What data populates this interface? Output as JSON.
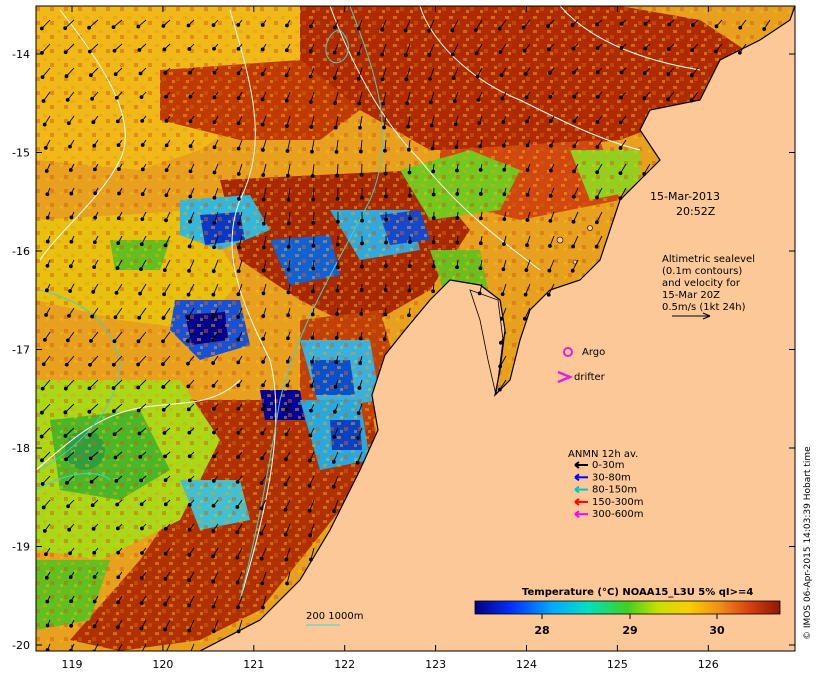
{
  "map": {
    "date_line1": "15-Mar-2013",
    "date_line2": "20:52Z",
    "altimetry_lines": [
      "Altimetric sealevel",
      "(0.1m contours)",
      "and velocity for",
      "15-Mar 20Z",
      "0.5m/s (1kt 24h)"
    ],
    "argo_label": "Argo",
    "drifter_label": "drifter",
    "anmn_title": "ANMN 12h av.",
    "anmn_legend": [
      {
        "label": "0-30m",
        "color": "#000000"
      },
      {
        "label": "30-80m",
        "color": "#0000ff"
      },
      {
        "label": "80-150m",
        "color": "#00c8c8"
      },
      {
        "label": "150-300m",
        "color": "#ff0000"
      },
      {
        "label": "300-600m",
        "color": "#ff00ff"
      }
    ],
    "isobath_label": "200 1000m",
    "colorbar_title": "Temperature (°C) NOAA15_L3U 5% qI>=4",
    "colorbar_ticks": [
      "28",
      "29",
      "30"
    ],
    "credit": "© IMOS 06-Apr-2015 14:03:39 Hobart time",
    "lat_ticks": [
      "-14",
      "-15",
      "-16",
      "-17",
      "-18",
      "-19",
      "-20"
    ],
    "lon_ticks": [
      "119",
      "120",
      "121",
      "122",
      "123",
      "124",
      "125",
      "126"
    ],
    "colors": {
      "land": "#fcc898",
      "warm_dark": "#b42800",
      "hot": "#d85010",
      "orange": "#e89018",
      "yellow": "#f0c800",
      "green": "#58c020",
      "cyan": "#40c8e0",
      "blue": "#1050d0",
      "navy": "#000090",
      "argo": "#e020e0"
    }
  }
}
